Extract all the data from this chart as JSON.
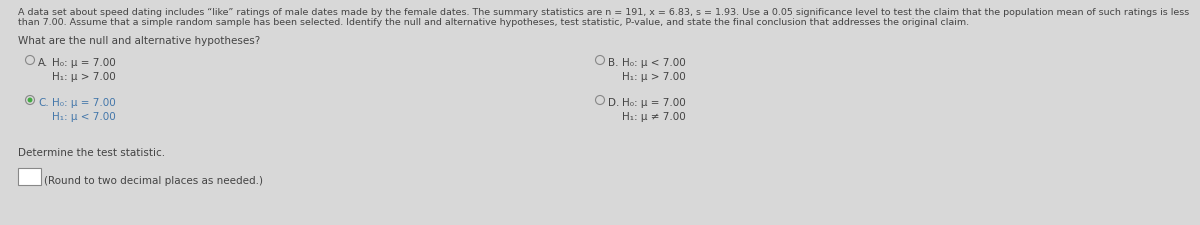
{
  "bg_color": "#d8d8d8",
  "text_color": "#444444",
  "para_line1": "A data set about speed dating includes “like” ratings of male dates made by the female dates. The summary statistics are n = 191, x = 6.83, s = 1.93. Use a 0.05 significance level to test the claim that the population mean of such ratings is less",
  "para_line2": "than 7.00. Assume that a simple random sample has been selected. Identify the null and alternative hypotheses, test statistic, P-value, and state the final conclusion that addresses the original claim.",
  "question": "What are the null and alternative hypotheses?",
  "opt_A_label": "A.",
  "opt_A_h0": "H₀: μ = 7.00",
  "opt_A_h1": "H₁: μ > 7.00",
  "opt_A_selected": false,
  "opt_B_label": "B.",
  "opt_B_h0": "H₀: μ < 7.00",
  "opt_B_h1": "H₁: μ > 7.00",
  "opt_B_selected": false,
  "opt_C_label": "C.",
  "opt_C_h0": "H₀: μ = 7.00",
  "opt_C_h1": "H₁: μ < 7.00",
  "opt_C_selected": true,
  "opt_D_label": "D.",
  "opt_D_h0": "H₀: μ = 7.00",
  "opt_D_h1": "H₁: μ ≠ 7.00",
  "opt_D_selected": false,
  "bottom_label": "Determine the test statistic.",
  "bottom_instruction": "(Round to two decimal places as needed.)",
  "font_size_para": 6.8,
  "font_size_question": 7.5,
  "font_size_options": 7.5,
  "font_size_bottom": 7.5,
  "selected_color": "#4477aa",
  "unselected_color": "#888888",
  "check_color": "#44aa44"
}
